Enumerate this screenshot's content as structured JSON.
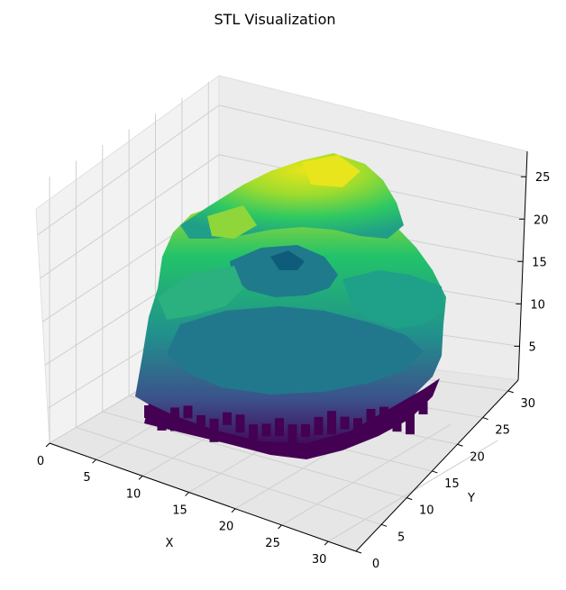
{
  "chart_data": {
    "type": "surface3d",
    "title": "STL Visualization",
    "xlabel": "X",
    "ylabel": "Y",
    "zlabel": "",
    "xlim": [
      0,
      33
    ],
    "ylim": [
      0,
      32
    ],
    "zlim": [
      1,
      28
    ],
    "xticks": [
      "0",
      "5",
      "10",
      "15",
      "20",
      "25",
      "30"
    ],
    "yticks": [
      "0",
      "5",
      "10",
      "15",
      "20",
      "25",
      "30"
    ],
    "zticks": [
      "5",
      "10",
      "15",
      "20",
      "25"
    ],
    "colormap": "viridis",
    "grid": true,
    "series": [
      {
        "shape": "voxelized torus-like mesh",
        "center": [
          16,
          16
        ],
        "outer_radius": 14,
        "z_range": [
          1,
          28
        ]
      }
    ]
  },
  "colors": {
    "pane": "#f2f2f2",
    "grid": "#d0d0d0",
    "viridis": [
      "#440154",
      "#3b528b",
      "#21918c",
      "#5ec962",
      "#fde725"
    ]
  }
}
